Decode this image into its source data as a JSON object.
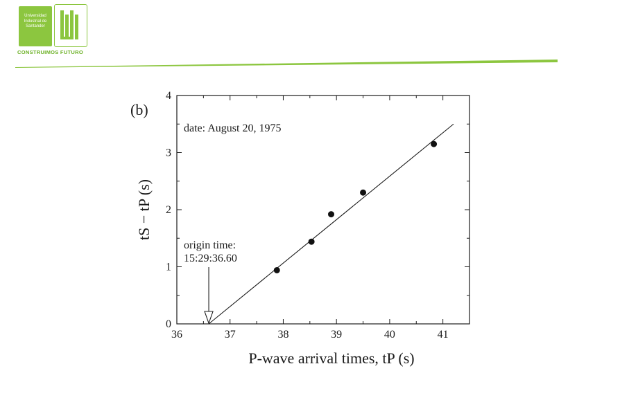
{
  "header": {
    "logo_text": "Universidad Industrial de Santander",
    "logo_mark": "UIS",
    "slogan": "CONSTRUIMOS FUTURO",
    "accent_color": "#8cc63f"
  },
  "chart_data": {
    "type": "scatter",
    "panel_label": "(b)",
    "xlabel": "P-wave arrival times, tP (s)",
    "ylabel": "tS − tP (s)",
    "xlim": [
      36,
      41.5
    ],
    "ylim": [
      0,
      4
    ],
    "x_ticks": [
      "36",
      "37",
      "38",
      "39",
      "40",
      "41"
    ],
    "y_ticks": [
      "0",
      "1",
      "2",
      "3",
      "4"
    ],
    "x_tick_values": [
      36,
      37,
      38,
      39,
      40,
      41
    ],
    "y_tick_values": [
      0,
      1,
      2,
      3,
      4
    ],
    "points": [
      {
        "x": 37.88,
        "y": 0.94
      },
      {
        "x": 38.53,
        "y": 1.44
      },
      {
        "x": 38.9,
        "y": 1.92
      },
      {
        "x": 39.5,
        "y": 2.3
      },
      {
        "x": 40.83,
        "y": 3.15
      }
    ],
    "fit_line": {
      "x1": 36.6,
      "y1": 0.0,
      "x2": 41.2,
      "y2": 3.5
    },
    "annotations": [
      {
        "text": "date: August 20, 1975"
      },
      {
        "text": "origin time:"
      },
      {
        "text": "15:29:36.60"
      }
    ],
    "origin_arrow_x": 36.6,
    "grid": false
  }
}
